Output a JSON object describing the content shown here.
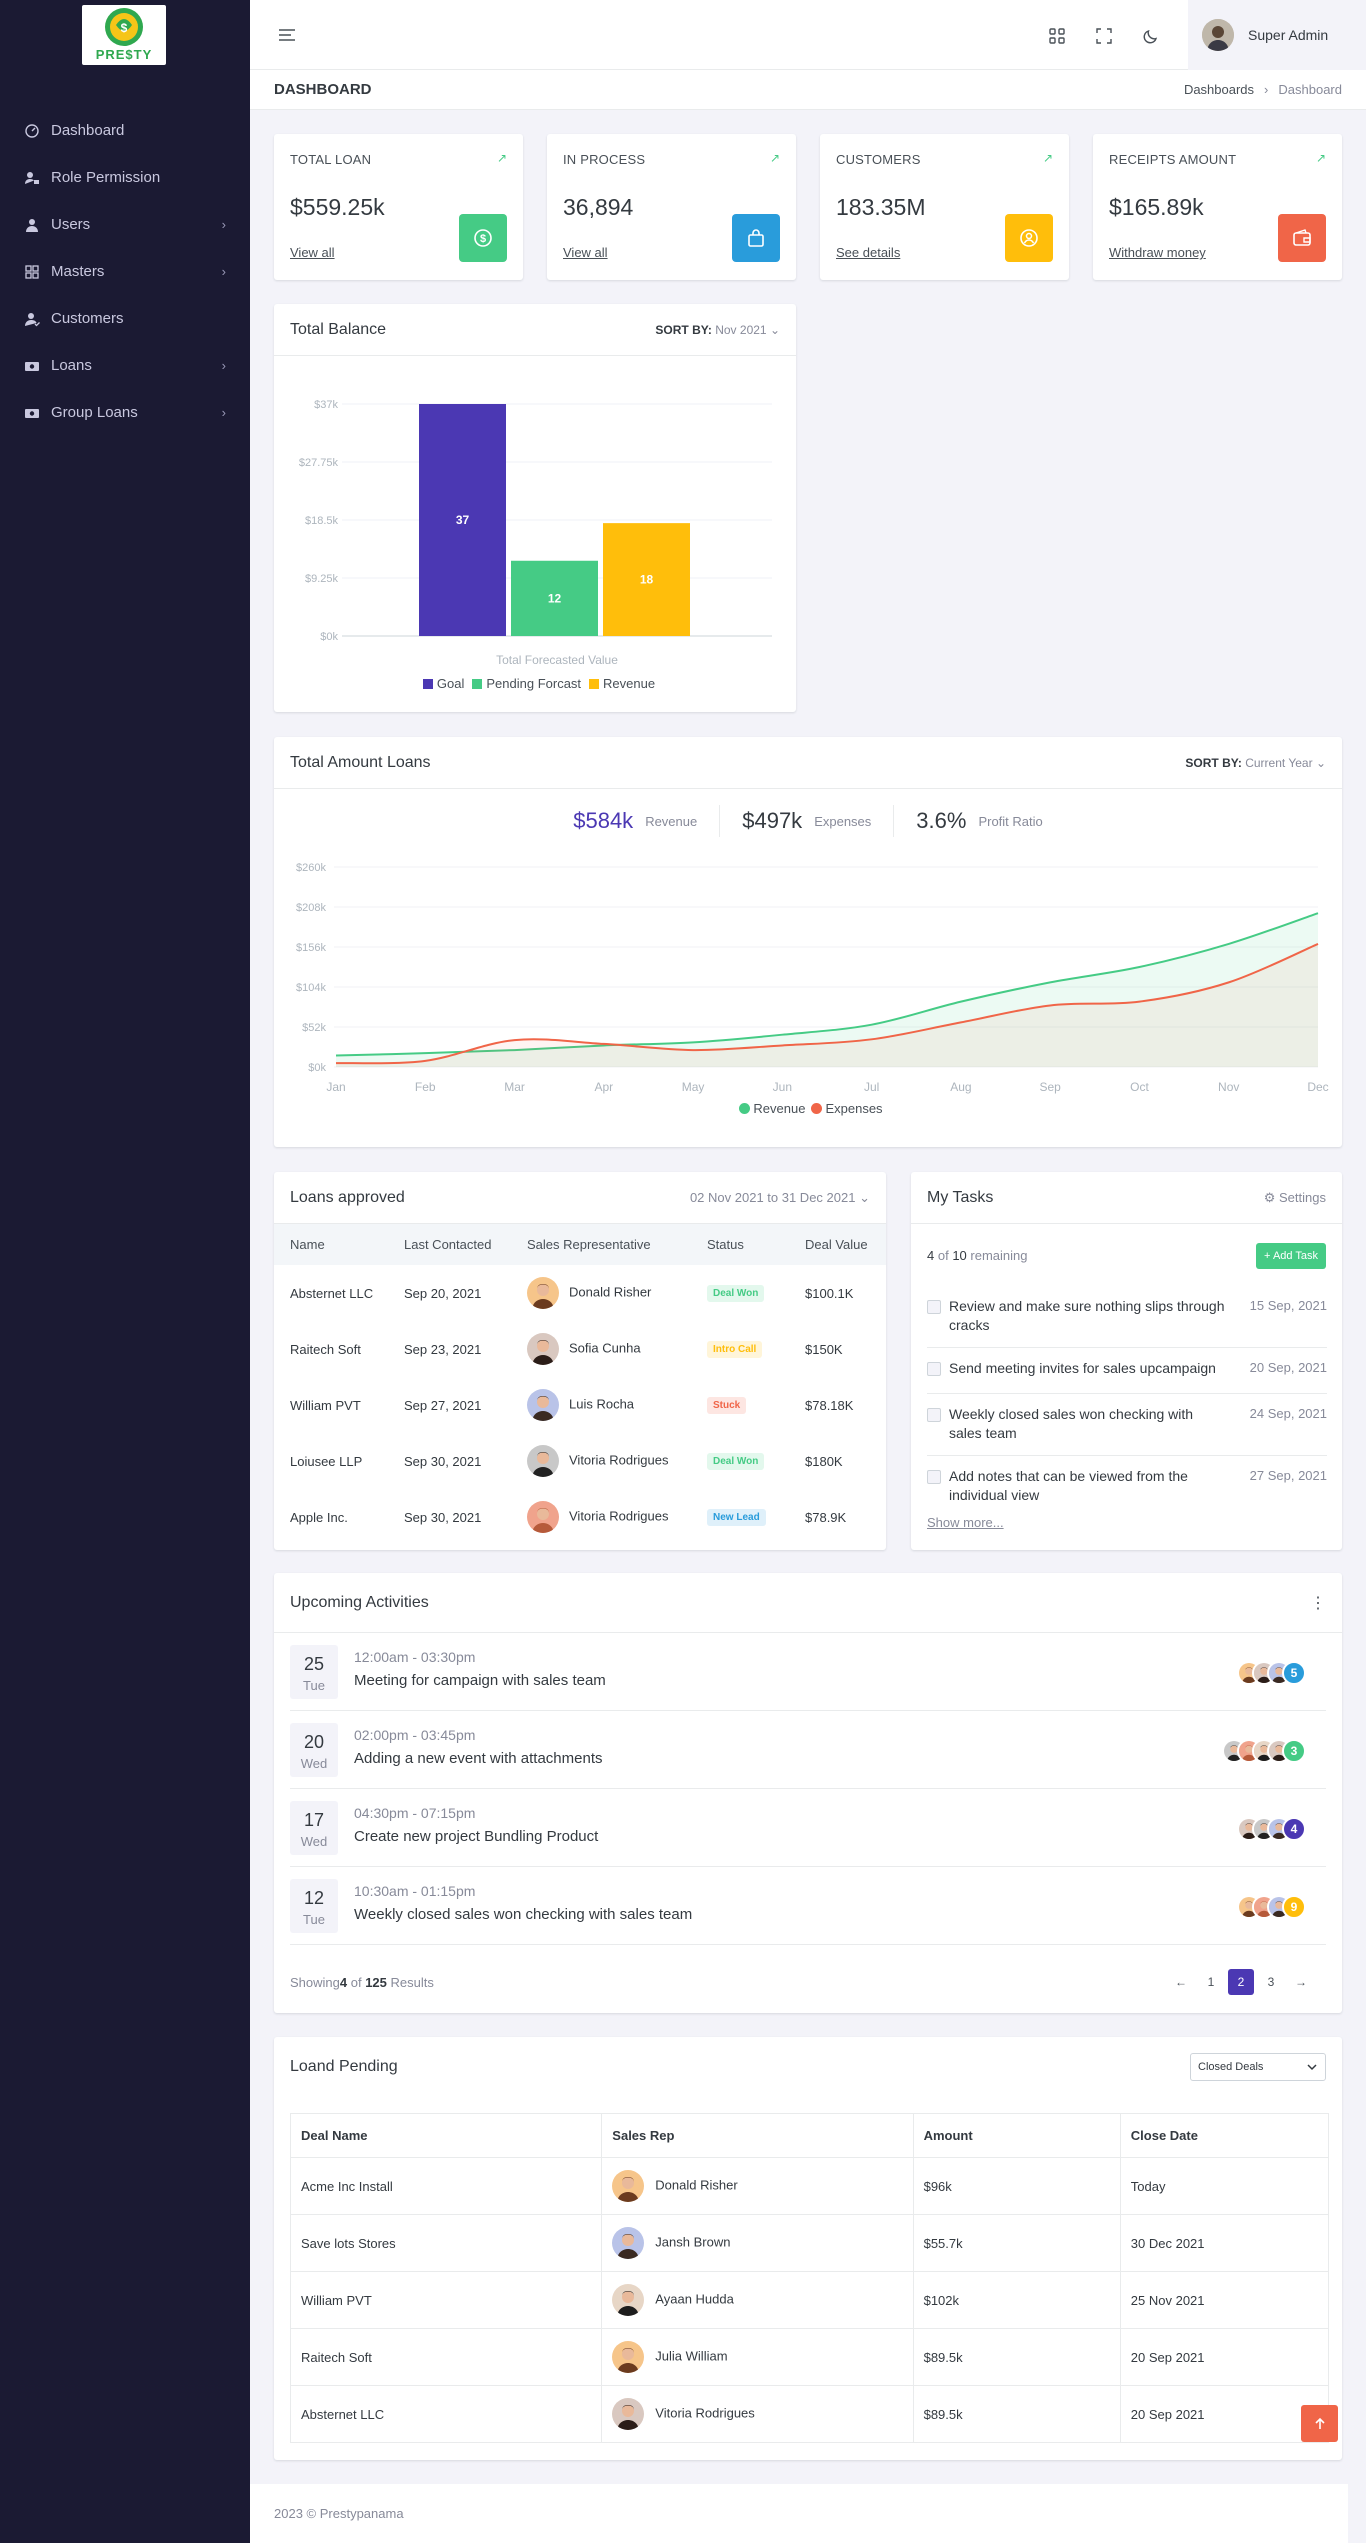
{
  "app": {
    "logo_alt": "PRESTY"
  },
  "sidebar": {
    "items": [
      {
        "label": "Dashboard",
        "icon": "dashboard-icon",
        "chevron": false
      },
      {
        "label": "Role Permission",
        "icon": "user-lock-icon",
        "chevron": false
      },
      {
        "label": "Users",
        "icon": "user-icon",
        "chevron": true
      },
      {
        "label": "Masters",
        "icon": "grid-icon",
        "chevron": true
      },
      {
        "label": "Customers",
        "icon": "customer-icon",
        "chevron": false
      },
      {
        "label": "Loans",
        "icon": "money-icon",
        "chevron": true
      },
      {
        "label": "Group Loans",
        "icon": "money-icon",
        "chevron": true
      }
    ]
  },
  "topbar": {
    "user_name": "Super Admin"
  },
  "page": {
    "title": "DASHBOARD",
    "breadcrumb_parent": "Dashboards",
    "breadcrumb_current": "Dashboard"
  },
  "stats": [
    {
      "title": "TOTAL LOAN",
      "value": "$559.25k",
      "link": "View all",
      "color": "#45cb85",
      "icon": "dollar-icon"
    },
    {
      "title": "IN PROCESS",
      "value": "36,894",
      "link": "View all",
      "color": "#299cdb",
      "icon": "bag-icon"
    },
    {
      "title": "CUSTOMERS",
      "value": "183.35M",
      "link": "See details",
      "color": "#ffbe0b",
      "icon": "user-circle-icon"
    },
    {
      "title": "RECEIPTS AMOUNT",
      "value": "$165.89k",
      "link": "Withdraw money",
      "color": "#f06548",
      "icon": "wallet-icon"
    }
  ],
  "balance": {
    "title": "Total Balance",
    "sort_label": "SORT BY:",
    "sort_value": "Nov 2021",
    "chart_data": {
      "type": "bar",
      "categories": [
        "Goal",
        "Pending Forcast",
        "Revenue"
      ],
      "values": [
        37,
        12,
        18
      ],
      "colors": [
        "#4b38b3",
        "#45cb85",
        "#ffbe0b"
      ],
      "xlabel": "Total Forecasted Value",
      "ylim": [
        0,
        37
      ],
      "yticks": [
        "$0k",
        "$9.25k",
        "$18.5k",
        "$27.75k",
        "$37k"
      ],
      "legend": [
        "Goal",
        "Pending Forcast",
        "Revenue"
      ]
    }
  },
  "loans_chart": {
    "title": "Total Amount Loans",
    "sort_label": "SORT BY:",
    "sort_value": "Current Year",
    "summary": [
      {
        "value": "$584k",
        "label": "Revenue"
      },
      {
        "value": "$497k",
        "label": "Expenses"
      },
      {
        "value": "3.6%",
        "label": "Profit Ratio"
      }
    ],
    "chart_data": {
      "type": "area",
      "x": [
        "Jan",
        "Feb",
        "Mar",
        "Apr",
        "May",
        "Jun",
        "Jul",
        "Aug",
        "Sep",
        "Oct",
        "Nov",
        "Dec"
      ],
      "series": [
        {
          "name": "Revenue",
          "color": "#45cb85",
          "values": [
            15,
            18,
            22,
            28,
            32,
            42,
            55,
            85,
            110,
            130,
            160,
            200
          ]
        },
        {
          "name": "Expenses",
          "color": "#f06548",
          "values": [
            5,
            8,
            35,
            30,
            22,
            28,
            36,
            58,
            80,
            85,
            110,
            160
          ]
        }
      ],
      "ylim": [
        0,
        260
      ],
      "yticks": [
        "$0k",
        "$52k",
        "$104k",
        "$156k",
        "$208k",
        "$260k"
      ]
    }
  },
  "loans_approved": {
    "title": "Loans approved",
    "date_range": "02 Nov 2021 to 31 Dec 2021",
    "columns": [
      "Name",
      "Last Contacted",
      "Sales Representative",
      "Status",
      "Deal Value"
    ],
    "rows": [
      {
        "name": "Absternet LLC",
        "date": "Sep 20, 2021",
        "rep": "Donald Risher",
        "status": "Deal Won",
        "value": "$100.1K"
      },
      {
        "name": "Raitech Soft",
        "date": "Sep 23, 2021",
        "rep": "Sofia Cunha",
        "status": "Intro Call",
        "value": "$150K"
      },
      {
        "name": "William PVT",
        "date": "Sep 27, 2021",
        "rep": "Luis Rocha",
        "status": "Stuck",
        "value": "$78.18K"
      },
      {
        "name": "Loiusee LLP",
        "date": "Sep 30, 2021",
        "rep": "Vitoria Rodrigues",
        "status": "Deal Won",
        "value": "$180K"
      },
      {
        "name": "Apple Inc.",
        "date": "Sep 30, 2021",
        "rep": "Vitoria Rodrigues",
        "status": "New Lead",
        "value": "$78.9K"
      }
    ]
  },
  "tasks": {
    "title": "My Tasks",
    "settings_label": "Settings",
    "done": "4",
    "of_label": "of",
    "total": "10",
    "remaining_label": "remaining",
    "add_label": "Add Task",
    "items": [
      {
        "text": "Review and make sure nothing slips through cracks",
        "date": "15 Sep, 2021"
      },
      {
        "text": "Send meeting invites for sales upcampaign",
        "date": "20 Sep, 2021"
      },
      {
        "text": "Weekly closed sales won checking with sales team",
        "date": "24 Sep, 2021"
      },
      {
        "text": "Add notes that can be viewed from the individual view",
        "date": "27 Sep, 2021"
      }
    ],
    "show_more": "Show more..."
  },
  "activities": {
    "title": "Upcoming Activities",
    "items": [
      {
        "day": "25",
        "weekday": "Tue",
        "time": "12:00am - 03:30pm",
        "desc": "Meeting for campaign with sales team",
        "count": "5",
        "count_color": "#299cdb"
      },
      {
        "day": "20",
        "weekday": "Wed",
        "time": "02:00pm - 03:45pm",
        "desc": "Adding a new event with attachments",
        "count": "3",
        "count_color": "#45cb85"
      },
      {
        "day": "17",
        "weekday": "Wed",
        "time": "04:30pm - 07:15pm",
        "desc": "Create new project Bundling Product",
        "count": "4",
        "count_color": "#4b38b3"
      },
      {
        "day": "12",
        "weekday": "Tue",
        "time": "10:30am - 01:15pm",
        "desc": "Weekly closed sales won checking with sales team",
        "count": "9",
        "count_color": "#ffbe0b"
      }
    ],
    "showing_prefix": "Showing",
    "showing_count": "4",
    "showing_of": "of",
    "showing_total": "125",
    "showing_suffix": "Results",
    "pages": [
      "1",
      "2",
      "3"
    ],
    "prev": "←",
    "next": "→"
  },
  "pending": {
    "title": "Loand Pending",
    "filter": "Closed Deals",
    "columns": [
      "Deal Name",
      "Sales Rep",
      "Amount",
      "Close Date"
    ],
    "rows": [
      {
        "deal": "Acme Inc Install",
        "rep": "Donald Risher",
        "amount": "$96k",
        "date": "Today"
      },
      {
        "deal": "Save lots Stores",
        "rep": "Jansh Brown",
        "amount": "$55.7k",
        "date": "30 Dec 2021"
      },
      {
        "deal": "William PVT",
        "rep": "Ayaan Hudda",
        "amount": "$102k",
        "date": "25 Nov 2021"
      },
      {
        "deal": "Raitech Soft",
        "rep": "Julia William",
        "amount": "$89.5k",
        "date": "20 Sep 2021"
      },
      {
        "deal": "Absternet LLC",
        "rep": "Vitoria Rodrigues",
        "amount": "$89.5k",
        "date": "20 Sep 2021"
      }
    ]
  },
  "footer": {
    "text": "2023 © Prestypanama"
  }
}
